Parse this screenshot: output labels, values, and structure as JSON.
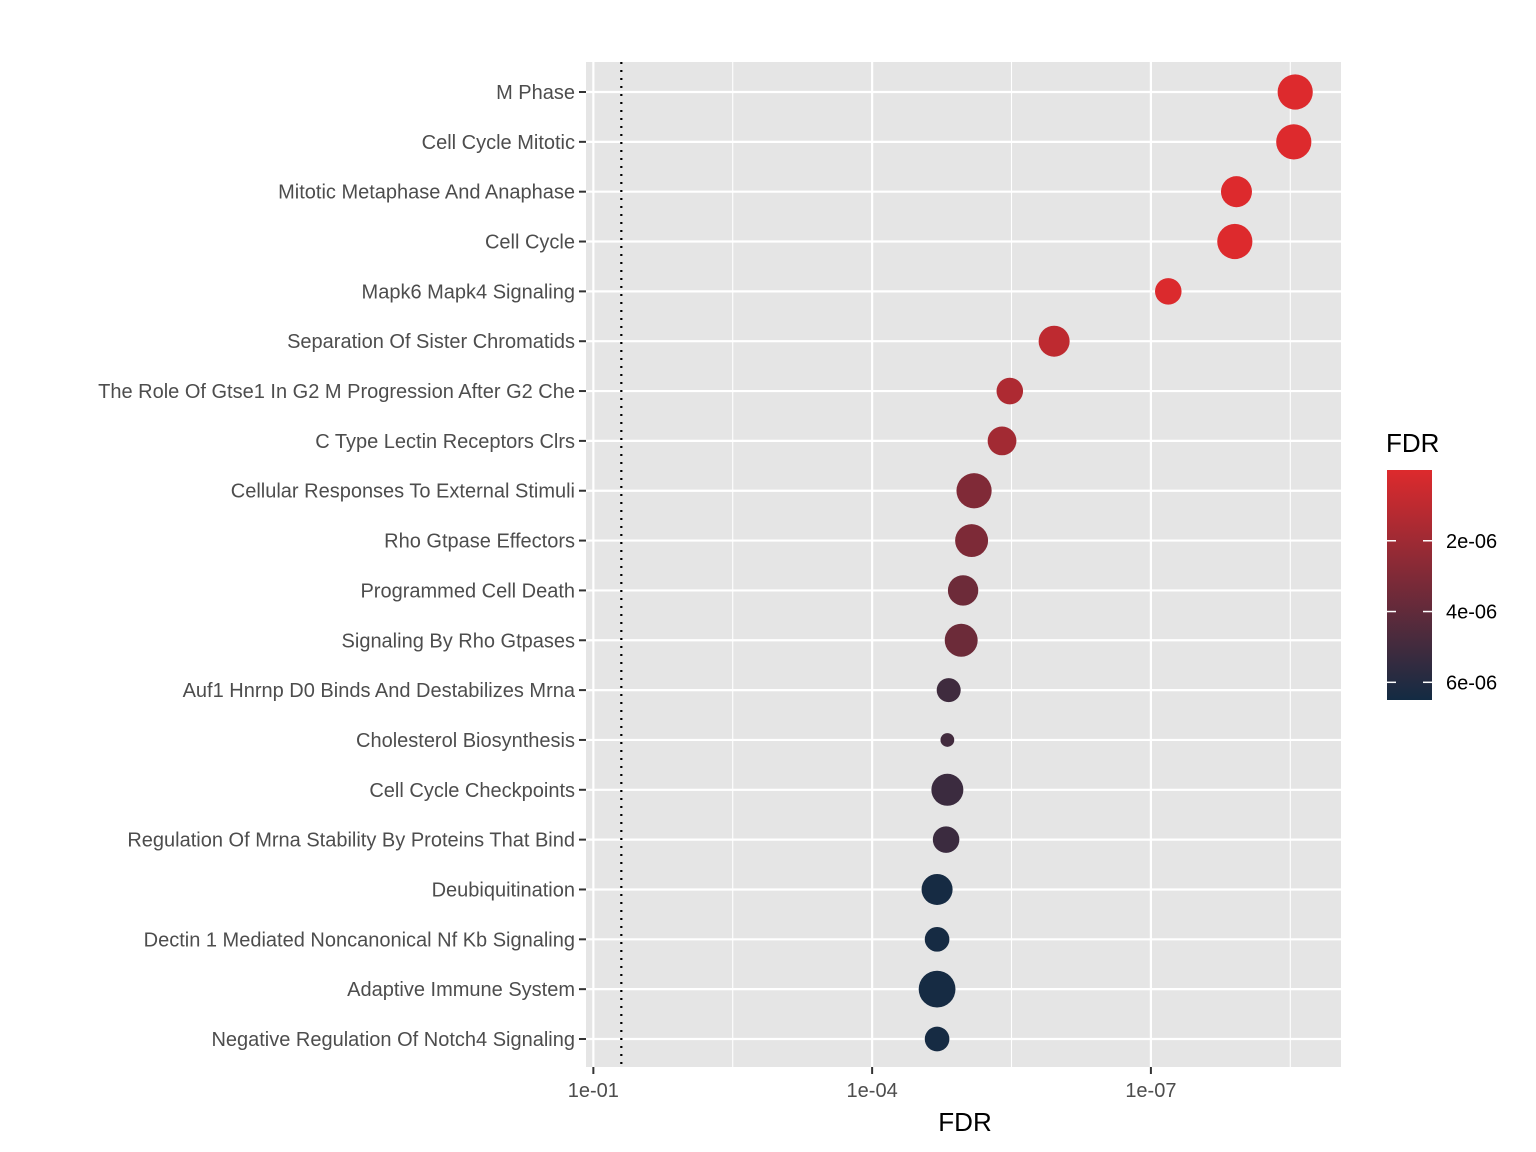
{
  "chart_data": {
    "type": "scatter",
    "xlabel": "FDR",
    "x_scale": "reverse-log10",
    "xlim": [
      0.12,
      9e-10
    ],
    "x_ticks": [
      {
        "value": 0.1,
        "label": "1e-01"
      },
      {
        "value": 0.0001,
        "label": "1e-04"
      },
      {
        "value": 1e-07,
        "label": "1e-07"
      }
    ],
    "threshold_line": {
      "x": 0.05,
      "style": "dotted"
    },
    "categories": [
      "M Phase",
      "Cell Cycle Mitotic",
      "Mitotic Metaphase And Anaphase",
      "Cell Cycle",
      "Mapk6 Mapk4 Signaling",
      "Separation Of Sister Chromatids",
      "The Role Of Gtse1 In G2 M Progression After G2 Che",
      "C Type Lectin Receptors Clrs",
      "Cellular Responses To External Stimuli",
      "Rho Gtpase Effectors",
      "Programmed Cell Death",
      "Signaling By Rho Gtpases",
      "Auf1 Hnrnp D0 Binds And Destabilizes Mrna",
      "Cholesterol Biosynthesis",
      "Cell Cycle Checkpoints",
      "Regulation Of Mrna Stability By Proteins That Bind",
      "Deubiquitination",
      "Dectin 1 Mediated Noncanonical Nf Kb Signaling",
      "Adaptive Immune System",
      "Negative Regulation Of Notch4 Signaling"
    ],
    "x": [
      2.8e-09,
      2.9e-09,
      1.2e-08,
      1.25e-08,
      6.5e-08,
      1.1e-06,
      3.3e-06,
      4e-06,
      8e-06,
      8.5e-06,
      1.05e-05,
      1.1e-05,
      1.5e-05,
      1.55e-05,
      1.55e-05,
      1.6e-05,
      2e-05,
      2e-05,
      2e-05,
      2e-05
    ],
    "color_values": [
      1e-09,
      1e-09,
      1e-08,
      1e-08,
      6e-08,
      1e-06,
      1.5e-06,
      1.9e-06,
      3e-06,
      3.1e-06,
      3.6e-06,
      3.65e-06,
      5.1e-06,
      5e-06,
      5.2e-06,
      5.2e-06,
      6.4e-06,
      6.4e-06,
      6.4e-06,
      6.4e-06
    ],
    "sizes": [
      0.85,
      0.85,
      0.72,
      0.85,
      0.58,
      0.72,
      0.58,
      0.65,
      0.85,
      0.78,
      0.7,
      0.78,
      0.5,
      0.18,
      0.75,
      0.58,
      0.72,
      0.52,
      0.9,
      0.52
    ],
    "legend": {
      "title": "FDR",
      "placement": "right",
      "range": [
        0,
        6.5e-06
      ],
      "ticks": [
        {
          "value": 2e-06,
          "label": "2e-06"
        },
        {
          "value": 4e-06,
          "label": "4e-06"
        },
        {
          "value": 6e-06,
          "label": "6e-06"
        }
      ],
      "color_low": "#dd2a2d",
      "color_high": "#132b43"
    },
    "panel_background": "#e5e5e5",
    "grid_color": "#ffffff"
  }
}
